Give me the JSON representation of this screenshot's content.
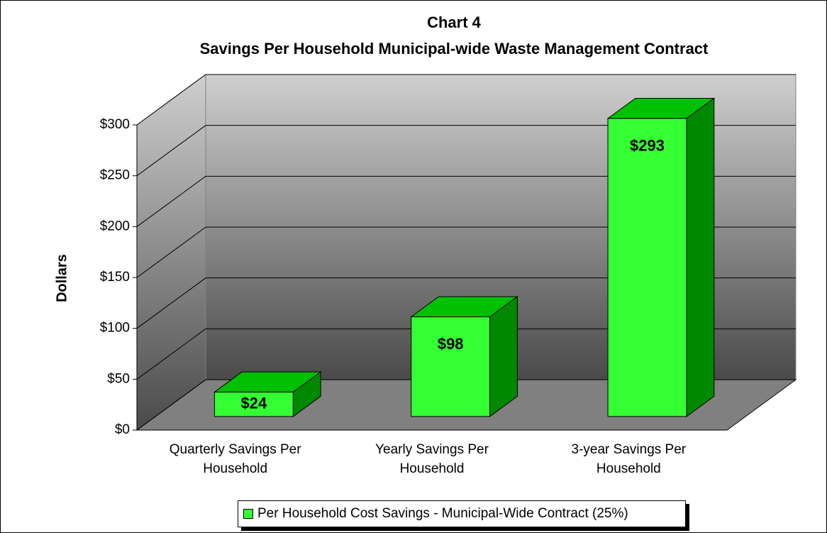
{
  "chart_data": {
    "type": "bar3d",
    "title": "Chart 4",
    "subtitle": "Savings Per Household Municipal-wide Waste Management Contract",
    "y_label": "Dollars",
    "categories": [
      "Quarterly Savings Per Household",
      "Yearly Savings Per Household",
      "3-year Savings Per Household"
    ],
    "series": [
      {
        "name": "Per Household Cost Savings - Municipal-Wide Contract (25%)",
        "color": "#33ff33",
        "values": [
          24,
          98,
          293
        ],
        "value_labels": [
          "$24",
          "$98",
          "$293"
        ]
      }
    ],
    "ylim": [
      0,
      300
    ],
    "yticks": [
      {
        "value": 0,
        "label": "$0"
      },
      {
        "value": 50,
        "label": "$50"
      },
      {
        "value": 100,
        "label": "$100"
      },
      {
        "value": 150,
        "label": "$150"
      },
      {
        "value": 200,
        "label": "$200"
      },
      {
        "value": 250,
        "label": "$250"
      },
      {
        "value": 300,
        "label": "$300"
      }
    ],
    "grid": true,
    "legend": "bottom"
  }
}
